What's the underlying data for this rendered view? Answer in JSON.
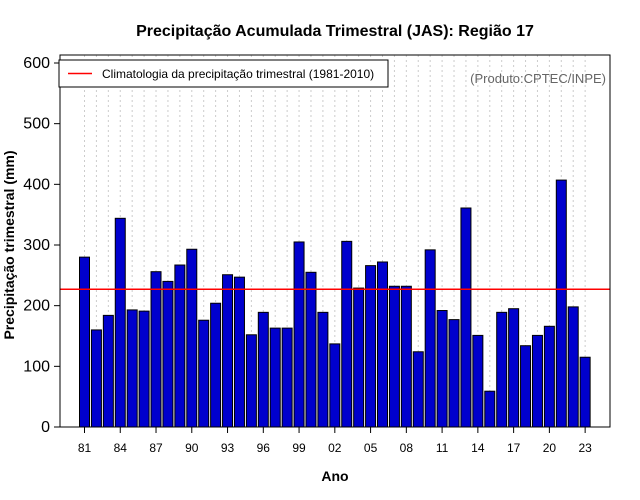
{
  "chart_data": {
    "type": "bar",
    "title": "Precipitação Acumulada Trimestral (JAS): Região 17",
    "xlabel": "Ano",
    "ylabel": "Precipitação trimestral (mm)",
    "ylim": [
      0,
      600
    ],
    "yticks": [
      0,
      100,
      200,
      300,
      400,
      500,
      600
    ],
    "categories": [
      "1981",
      "1982",
      "1983",
      "1984",
      "1985",
      "1986",
      "1987",
      "1988",
      "1989",
      "1990",
      "1991",
      "1992",
      "1993",
      "1994",
      "1995",
      "1996",
      "1997",
      "1998",
      "1999",
      "2000",
      "2001",
      "2002",
      "2003",
      "2004",
      "2005",
      "2006",
      "2007",
      "2008",
      "2009",
      "2010",
      "2011",
      "2012",
      "2013",
      "2014",
      "2015",
      "2016",
      "2017",
      "2018",
      "2019",
      "2020",
      "2021",
      "2022",
      "2023"
    ],
    "xtick_labels": [
      "81",
      "84",
      "87",
      "90",
      "93",
      "96",
      "99",
      "02",
      "05",
      "08",
      "11",
      "14",
      "17",
      "20",
      "23"
    ],
    "values": [
      280,
      160,
      184,
      344,
      193,
      191,
      256,
      240,
      267,
      293,
      176,
      204,
      251,
      247,
      152,
      189,
      163,
      163,
      305,
      255,
      189,
      137,
      306,
      229,
      266,
      272,
      232,
      232,
      124,
      292,
      192,
      177,
      361,
      151,
      59,
      189,
      195,
      134,
      151,
      166,
      407,
      198,
      115
    ],
    "bar_color": "#0000CD",
    "grid": "vertical dotted",
    "reference_line": {
      "value": 227,
      "color": "#FF0000",
      "label": "Climatologia da precipitação trimestral (1981-2010)"
    },
    "legend_position": "top-left",
    "credit": "(Produto:CPTEC/INPE)"
  }
}
